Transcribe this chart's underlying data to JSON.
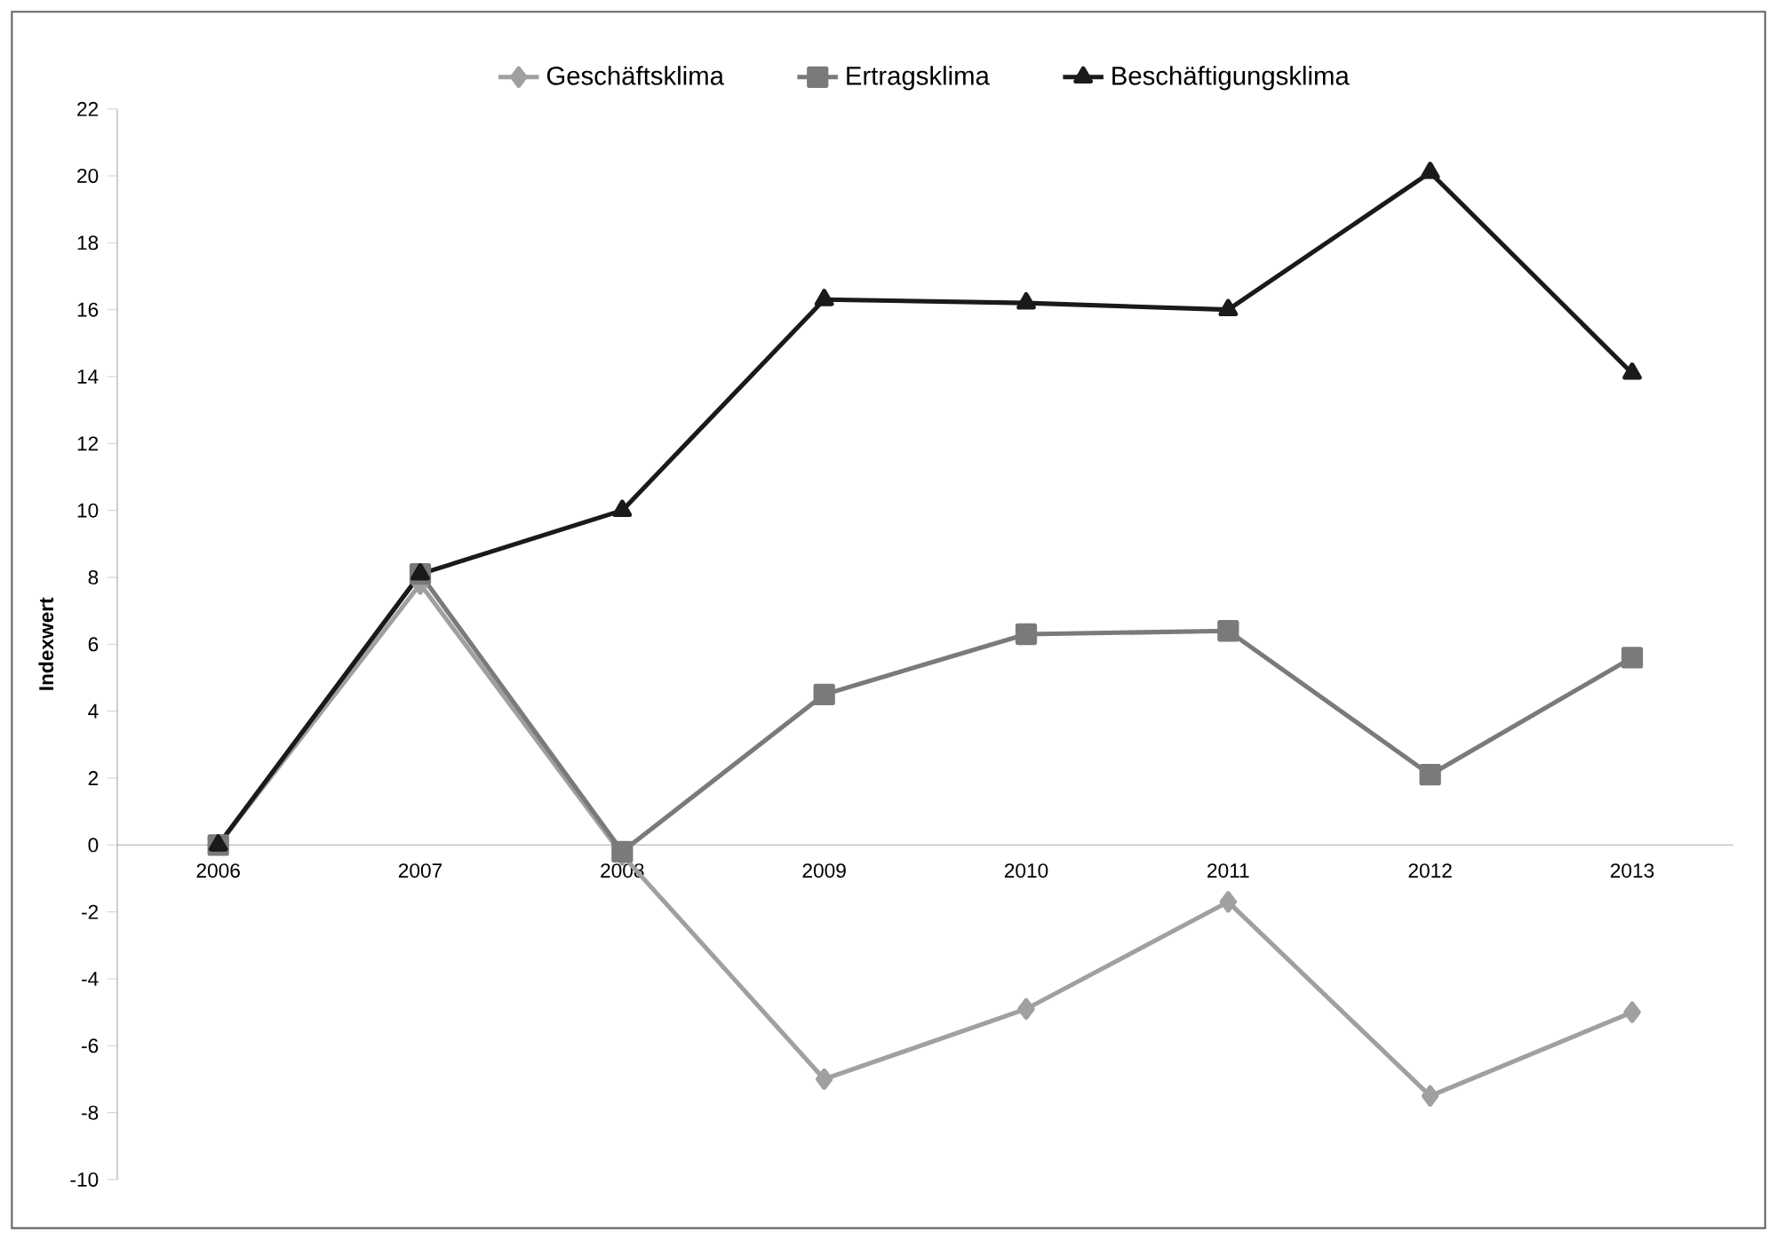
{
  "chart_data": {
    "type": "line",
    "ylabel": "Indexwert",
    "categories": [
      "2006",
      "2007",
      "2008",
      "2009",
      "2010",
      "2011",
      "2012",
      "2013"
    ],
    "series": [
      {
        "name": "Geschäftsklima",
        "color": "#a0a0a0",
        "marker": "diamond",
        "values": [
          0,
          7.8,
          -0.3,
          -7.0,
          -4.9,
          -1.7,
          -7.5,
          -5.0
        ]
      },
      {
        "name": "Ertragsklima",
        "color": "#7a7a7a",
        "marker": "square",
        "values": [
          0,
          8.1,
          -0.2,
          4.5,
          6.3,
          6.4,
          2.1,
          5.6
        ]
      },
      {
        "name": "Beschäftigungsklima",
        "color": "#1a1a1a",
        "marker": "triangle",
        "values": [
          0,
          8.1,
          10.0,
          16.3,
          16.2,
          16.0,
          20.1,
          14.1
        ]
      }
    ],
    "ylim": [
      -10,
      22
    ],
    "yticks": [
      -10,
      -8,
      -6,
      -4,
      -2,
      0,
      2,
      4,
      6,
      8,
      10,
      12,
      14,
      16,
      18,
      20,
      22
    ],
    "grid": false,
    "legend": "top",
    "line_style": "solid"
  }
}
